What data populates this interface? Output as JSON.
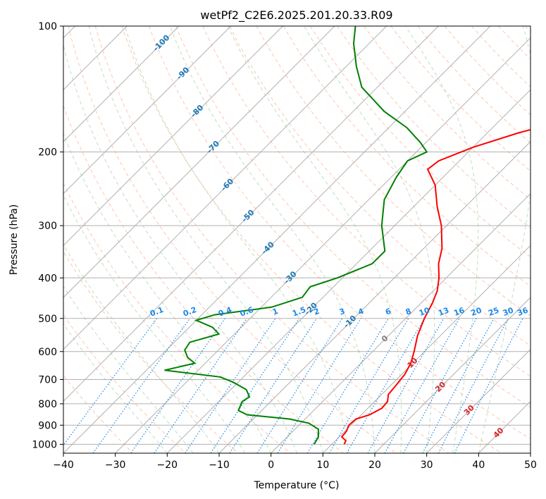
{
  "chart_data": {
    "type": "line",
    "subtype": "skew-T log-P diagram",
    "title": "wetPf2_C2E6.2025.201.20.33.R09",
    "xlabel": "Temperature (°C)",
    "ylabel": "Pressure (hPa)",
    "xlim": [
      -40,
      50
    ],
    "ylim": [
      1050,
      100
    ],
    "y_scale": "log",
    "x_ticks": [
      "−40",
      "−30",
      "−20",
      "−10",
      "0",
      "10",
      "20",
      "30",
      "40",
      "50"
    ],
    "x_tick_values": [
      -40,
      -30,
      -20,
      -10,
      0,
      10,
      20,
      30,
      40,
      50
    ],
    "y_ticks": [
      "100",
      "200",
      "300",
      "400",
      "500",
      "600",
      "700",
      "800",
      "900",
      "1000"
    ],
    "y_tick_values": [
      100,
      200,
      300,
      400,
      500,
      600,
      700,
      800,
      900,
      1000
    ],
    "grid": true,
    "colors": {
      "temperature": "#ff0000",
      "dewpoint": "#008000",
      "isotherm_label": "#1f77b4",
      "mixing_ratio": "#1e88e5",
      "moist_adiabat_label": "#d62728",
      "dry_adiabat": "#ff7f50",
      "moist_adiabat": "#7fbf7f",
      "grid": "#b0b0b0"
    },
    "isotherm_labels": [
      "-100",
      "-90",
      "-80",
      "-70",
      "-60",
      "-50",
      "-40",
      "-30",
      "-20",
      "-10",
      "0",
      "10",
      "20",
      "30",
      "40"
    ],
    "isotherm_label_values": [
      -100,
      -90,
      -80,
      -70,
      -60,
      -50,
      -40,
      -30,
      -20,
      -10,
      0,
      10,
      20,
      30,
      40
    ],
    "mixing_ratio_labels": [
      "0.1",
      "0.2",
      "0.4",
      "0.6",
      "1",
      "1.5",
      "2",
      "3",
      "4",
      "6",
      "8",
      "10",
      "13",
      "16",
      "20",
      "25",
      "30",
      "36"
    ],
    "mixing_ratio_values": [
      0.1,
      0.2,
      0.4,
      0.6,
      1,
      1.5,
      2,
      3,
      4,
      6,
      8,
      10,
      13,
      16,
      20,
      25,
      30,
      36
    ],
    "series": [
      {
        "kind": "temperature",
        "points": [
          {
            "p": 1000,
            "t": 12.4
          },
          {
            "p": 980,
            "t": 12.0
          },
          {
            "p": 960,
            "t": 10.5
          },
          {
            "p": 930,
            "t": 10.3
          },
          {
            "p": 900,
            "t": 9.6
          },
          {
            "p": 870,
            "t": 9.8
          },
          {
            "p": 850,
            "t": 11.6
          },
          {
            "p": 820,
            "t": 12.7
          },
          {
            "p": 790,
            "t": 12.5
          },
          {
            "p": 760,
            "t": 11.3
          },
          {
            "p": 720,
            "t": 11.0
          },
          {
            "p": 680,
            "t": 10.6
          },
          {
            "p": 640,
            "t": 9.6
          },
          {
            "p": 600,
            "t": 8.0
          },
          {
            "p": 550,
            "t": 5.6
          },
          {
            "p": 500,
            "t": 3.6
          },
          {
            "p": 460,
            "t": 2.2
          },
          {
            "p": 430,
            "t": 0.8
          },
          {
            "p": 400,
            "t": -1.4
          },
          {
            "p": 370,
            "t": -4.2
          },
          {
            "p": 340,
            "t": -6.5
          },
          {
            "p": 300,
            "t": -11.0
          },
          {
            "p": 270,
            "t": -15.5
          },
          {
            "p": 240,
            "t": -20.0
          },
          {
            "p": 220,
            "t": -24.5
          },
          {
            "p": 210,
            "t": -24.0
          },
          {
            "p": 195,
            "t": -20.0
          },
          {
            "p": 180,
            "t": -14.0
          },
          {
            "p": 160,
            "t": -2.5
          },
          {
            "p": 150,
            "t": 3.5
          },
          {
            "p": 140,
            "t": 8.0
          },
          {
            "p": 130,
            "t": 10.5
          },
          {
            "p": 120,
            "t": 11.8
          },
          {
            "p": 110,
            "t": 12.8
          },
          {
            "p": 100,
            "t": 12.8
          }
        ]
      },
      {
        "kind": "dewpoint",
        "points": [
          {
            "p": 1000,
            "t": 6.6
          },
          {
            "p": 960,
            "t": 6.0
          },
          {
            "p": 920,
            "t": 4.5
          },
          {
            "p": 890,
            "t": 1.5
          },
          {
            "p": 870,
            "t": -3.0
          },
          {
            "p": 850,
            "t": -12.0
          },
          {
            "p": 830,
            "t": -14.5
          },
          {
            "p": 810,
            "t": -15.0
          },
          {
            "p": 790,
            "t": -15.5
          },
          {
            "p": 770,
            "t": -15.0
          },
          {
            "p": 740,
            "t": -17.0
          },
          {
            "p": 710,
            "t": -21.0
          },
          {
            "p": 690,
            "t": -24.5
          },
          {
            "p": 665,
            "t": -36.5
          },
          {
            "p": 640,
            "t": -32.0
          },
          {
            "p": 620,
            "t": -34.5
          },
          {
            "p": 595,
            "t": -36.5
          },
          {
            "p": 570,
            "t": -37.0
          },
          {
            "p": 545,
            "t": -33.0
          },
          {
            "p": 525,
            "t": -35.5
          },
          {
            "p": 505,
            "t": -40.0
          },
          {
            "p": 490,
            "t": -37.5
          },
          {
            "p": 470,
            "t": -28.0
          },
          {
            "p": 445,
            "t": -24.0
          },
          {
            "p": 420,
            "t": -24.5
          },
          {
            "p": 400,
            "t": -21.0
          },
          {
            "p": 370,
            "t": -17.0
          },
          {
            "p": 345,
            "t": -17.0
          },
          {
            "p": 300,
            "t": -22.5
          },
          {
            "p": 260,
            "t": -27.0
          },
          {
            "p": 230,
            "t": -29.0
          },
          {
            "p": 210,
            "t": -30.0
          },
          {
            "p": 200,
            "t": -28.0
          },
          {
            "p": 190,
            "t": -31.0
          },
          {
            "p": 175,
            "t": -36.5
          },
          {
            "p": 160,
            "t": -44.0
          },
          {
            "p": 140,
            "t": -53.0
          },
          {
            "p": 125,
            "t": -58.0
          },
          {
            "p": 110,
            "t": -63.0
          },
          {
            "p": 100,
            "t": -66.0
          }
        ]
      }
    ]
  }
}
